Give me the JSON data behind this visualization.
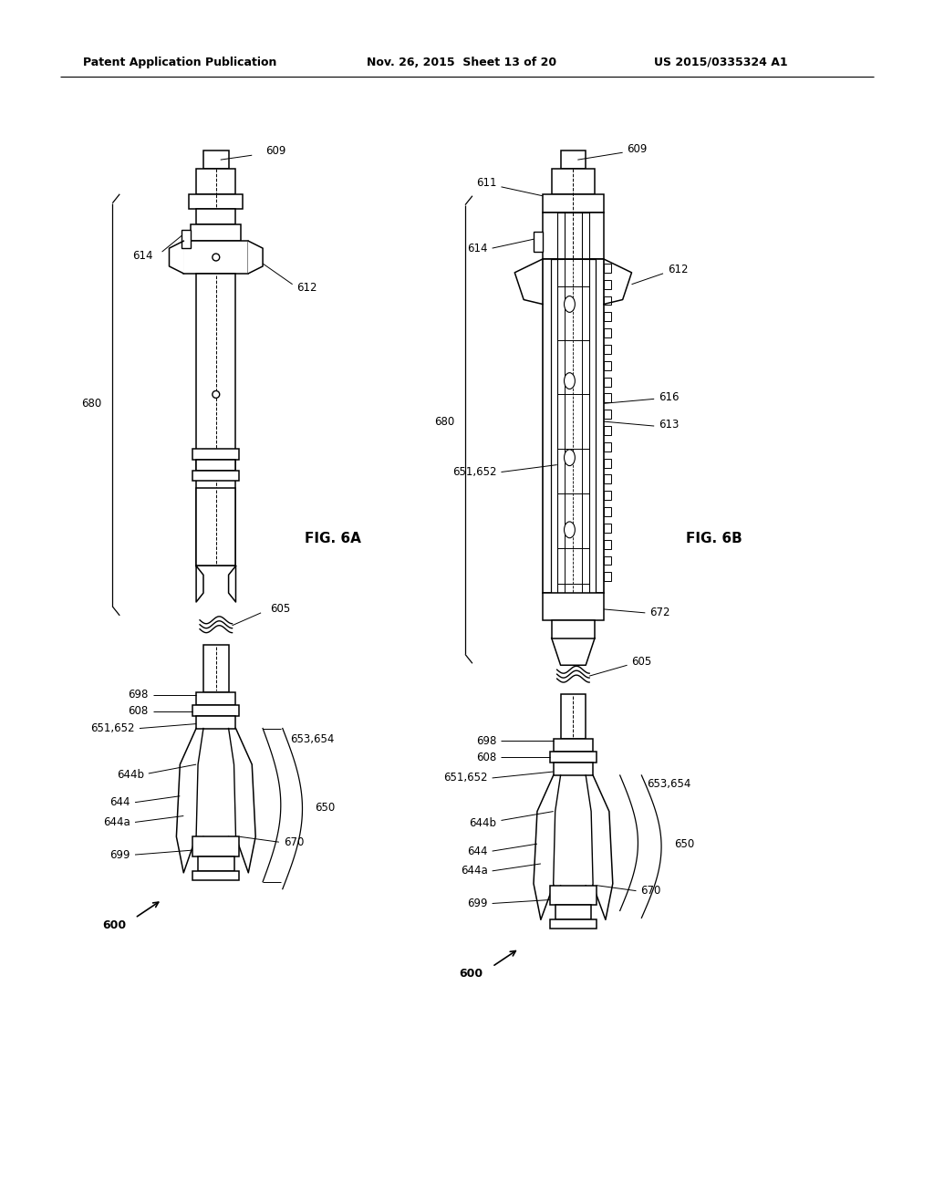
{
  "title_left": "Patent Application Publication",
  "title_mid": "Nov. 26, 2015  Sheet 13 of 20",
  "title_right": "US 2015/0335324 A1",
  "fig_a_label": "FIG. 6A",
  "fig_b_label": "FIG. 6B",
  "background_color": "#ffffff",
  "line_color": "#000000"
}
